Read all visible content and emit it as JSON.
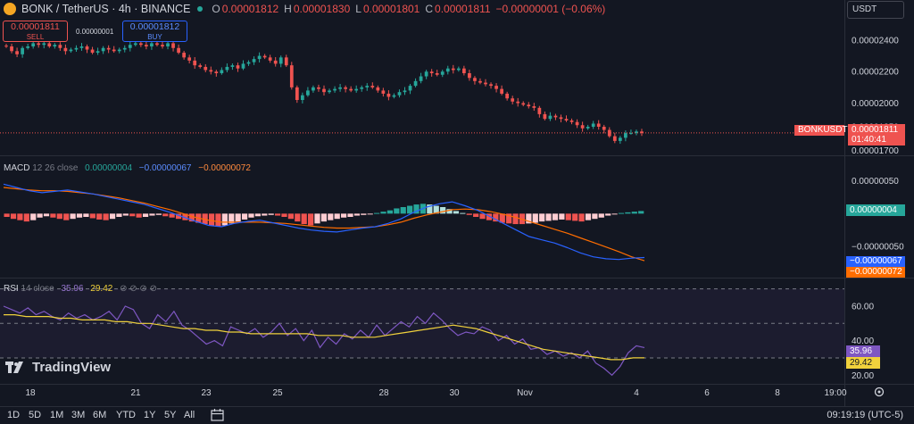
{
  "header": {
    "symbol": "BONK / TetherUS · 4h · BINANCE",
    "ohlc": [
      {
        "key": "O",
        "value": "0.00001812"
      },
      {
        "key": "H",
        "value": "0.00001830"
      },
      {
        "key": "L",
        "value": "0.00001801"
      },
      {
        "key": "C",
        "value": "0.00001811"
      }
    ],
    "change": "−0.00000001 (−0.06%)"
  },
  "trade": {
    "sell_price": "0.00001811",
    "sell_label": "SELL",
    "spread": "0.00000001",
    "buy_price": "0.00001812",
    "buy_label": "BUY"
  },
  "currency_selector": "USDT",
  "price_badge": {
    "symbol": "BONKUSDT",
    "price": "0.00001811",
    "countdown": "01:40:41"
  },
  "macd_legend": {
    "name": "MACD",
    "params": "12 26 close",
    "v1": "0.00000004",
    "v2": "−0.00000067",
    "v3": "−0.00000072"
  },
  "macd_badges": [
    "0.00000004",
    "−0.00000067",
    "−0.00000072"
  ],
  "rsi_legend": {
    "name": "RSI",
    "params": "14 close",
    "v1": "35.96",
    "v2": "29.42",
    "icons": "⊘ ⊘ ⊘ ⊘"
  },
  "rsi_badges": [
    "35.96",
    "29.42"
  ],
  "brand": "TradingView",
  "toolbar": {
    "timeframes": [
      "1D",
      "5D",
      "1M",
      "3M",
      "6M",
      "YTD",
      "1Y",
      "5Y",
      "All"
    ],
    "clock": "09:19:19 (UTC-5)"
  },
  "colors": {
    "up": "#26a69a",
    "down": "#ef5350",
    "macd": "#2962ff",
    "signal": "#ff6d00",
    "rsi": "#7e57c2",
    "rsi_ma": "#f0d13c"
  },
  "chart_data": [
    {
      "type": "candlestick",
      "title": "BONK / TetherUS · 4h · BINANCE",
      "x_ticks": [
        "18",
        "21",
        "23",
        "25",
        "28",
        "30",
        "Nov",
        "4",
        "6",
        "8",
        "19:00"
      ],
      "y_ticks": [
        "0.00002400",
        "0.00002200",
        "0.00002000",
        "0.00001850",
        "0.00001700"
      ],
      "ylim": [
        1.68e-05,
        2.53e-05
      ],
      "last_price": 1.811e-05,
      "close_series": [
        2.36e-05,
        2.33e-05,
        2.31e-05,
        2.35e-05,
        2.36e-05,
        2.38e-05,
        2.37e-05,
        2.38e-05,
        2.36e-05,
        2.37e-05,
        2.35e-05,
        2.33e-05,
        2.34e-05,
        2.35e-05,
        2.36e-05,
        2.34e-05,
        2.32e-05,
        2.33e-05,
        2.35e-05,
        2.34e-05,
        2.33e-05,
        2.34e-05,
        2.35e-05,
        2.37e-05,
        2.38e-05,
        2.37e-05,
        2.36e-05,
        2.38e-05,
        2.37e-05,
        2.36e-05,
        2.38e-05,
        2.35e-05,
        2.32e-05,
        2.29e-05,
        2.27e-05,
        2.24e-05,
        2.23e-05,
        2.21e-05,
        2.2e-05,
        2.19e-05,
        2.21e-05,
        2.23e-05,
        2.24e-05,
        2.22e-05,
        2.25e-05,
        2.26e-05,
        2.28e-05,
        2.3e-05,
        2.29e-05,
        2.27e-05,
        2.25e-05,
        2.29e-05,
        2.24e-05,
        2.1e-05,
        2.02e-05,
        2.05e-05,
        2.08e-05,
        2.1e-05,
        2.09e-05,
        2.07e-05,
        2.08e-05,
        2.09e-05,
        2.1e-05,
        2.09e-05,
        2.08e-05,
        2.09e-05,
        2.1e-05,
        2.11e-05,
        2.1e-05,
        2.08e-05,
        2.06e-05,
        2.04e-05,
        2.05e-05,
        2.07e-05,
        2.08e-05,
        2.11e-05,
        2.14e-05,
        2.17e-05,
        2.2e-05,
        2.19e-05,
        2.18e-05,
        2.2e-05,
        2.22e-05,
        2.21e-05,
        2.22e-05,
        2.19e-05,
        2.16e-05,
        2.14e-05,
        2.13e-05,
        2.12e-05,
        2.11e-05,
        2.09e-05,
        2.06e-05,
        2.03e-05,
        2.01e-05,
        2e-05,
        1.99e-05,
        1.98e-05,
        1.97e-05,
        1.93e-05,
        1.9e-05,
        1.92e-05,
        1.91e-05,
        1.9e-05,
        1.89e-05,
        1.88e-05,
        1.86e-05,
        1.84e-05,
        1.85e-05,
        1.87e-05,
        1.85e-05,
        1.83e-05,
        1.79e-05,
        1.76e-05,
        1.78e-05,
        1.81e-05,
        1.81e-05,
        1.82e-05,
        1.81e-05
      ]
    },
    {
      "type": "bar",
      "title": "MACD",
      "y_ticks": [
        "0.00000050",
        "−0.00000050"
      ],
      "ylim": [
        -9.5e-07,
        8.5e-07
      ],
      "histogram": [
        -0.05,
        -0.08,
        -0.1,
        -0.12,
        -0.1,
        -0.06,
        -0.04,
        -0.06,
        -0.08,
        -0.1,
        -0.08,
        -0.06,
        -0.05,
        -0.07,
        -0.09,
        -0.1,
        -0.08,
        -0.05,
        -0.03,
        -0.04,
        -0.06,
        -0.05,
        -0.03,
        -0.02,
        -0.04,
        -0.06,
        -0.08,
        -0.1,
        -0.12,
        -0.14,
        -0.16,
        -0.18,
        -0.2,
        -0.18,
        -0.15,
        -0.12,
        -0.09,
        -0.06,
        -0.04,
        -0.03,
        -0.02,
        -0.03,
        -0.05,
        -0.08,
        -0.12,
        -0.16,
        -0.18,
        -0.15,
        -0.12,
        -0.1,
        -0.08,
        -0.06,
        -0.05,
        -0.03,
        -0.02,
        -0.01,
        0.01,
        0.03,
        0.05,
        0.08,
        0.1,
        0.12,
        0.14,
        0.15,
        0.14,
        0.12,
        0.1,
        0.07,
        0.04,
        0.01,
        -0.02,
        -0.05,
        -0.08,
        -0.1,
        -0.12,
        -0.14,
        -0.15,
        -0.16,
        -0.16,
        -0.15,
        -0.14,
        -0.12,
        -0.11,
        -0.1,
        -0.09,
        -0.1,
        -0.11,
        -0.12,
        -0.1,
        -0.08,
        -0.06,
        -0.03,
        -0.01,
        0.01,
        0.02,
        0.03,
        0.04
      ],
      "macd_line": [
        0.45,
        0.4,
        0.35,
        0.32,
        0.34,
        0.36,
        0.33,
        0.3,
        0.26,
        0.22,
        0.18,
        0.14,
        0.08,
        0.02,
        -0.05,
        -0.12,
        -0.18,
        -0.2,
        -0.15,
        -0.12,
        -0.1,
        -0.14,
        -0.18,
        -0.22,
        -0.25,
        -0.27,
        -0.28,
        -0.25,
        -0.22,
        -0.2,
        -0.15,
        -0.08,
        0.02,
        0.1,
        0.15,
        0.18,
        0.12,
        0.05,
        -0.05,
        -0.15,
        -0.25,
        -0.35,
        -0.4,
        -0.45,
        -0.52,
        -0.6,
        -0.66,
        -0.69,
        -0.7,
        -0.68,
        -0.67
      ],
      "signal_line": [
        0.4,
        0.38,
        0.36,
        0.35,
        0.35,
        0.34,
        0.32,
        0.3,
        0.27,
        0.24,
        0.2,
        0.16,
        0.11,
        0.06,
        0.0,
        -0.06,
        -0.1,
        -0.13,
        -0.13,
        -0.13,
        -0.13,
        -0.14,
        -0.15,
        -0.17,
        -0.19,
        -0.21,
        -0.22,
        -0.22,
        -0.21,
        -0.2,
        -0.17,
        -0.13,
        -0.07,
        -0.02,
        0.02,
        0.06,
        0.07,
        0.06,
        0.03,
        -0.01,
        -0.06,
        -0.12,
        -0.18,
        -0.24,
        -0.3,
        -0.37,
        -0.44,
        -0.51,
        -0.58,
        -0.66,
        -0.72
      ]
    },
    {
      "type": "line",
      "title": "RSI",
      "y_ticks": [
        "60.00",
        "40.00",
        "20.00"
      ],
      "ylim": [
        16,
        75
      ],
      "bands": [
        70,
        50,
        30
      ],
      "rsi": [
        60,
        58,
        56,
        59,
        55,
        57,
        54,
        52,
        56,
        53,
        55,
        52,
        54,
        57,
        52,
        60,
        58,
        50,
        47,
        55,
        51,
        57,
        49,
        46,
        42,
        38,
        40,
        37,
        48,
        46,
        44,
        47,
        42,
        45,
        50,
        43,
        47,
        40,
        46,
        36,
        42,
        38,
        44,
        41,
        46,
        42,
        49,
        43,
        47,
        51,
        48,
        54,
        50,
        56,
        52,
        47,
        43,
        45,
        44,
        48,
        46,
        40,
        43,
        38,
        41,
        35,
        36,
        32,
        34,
        31,
        33,
        30,
        34,
        27,
        24,
        20,
        25,
        33,
        37,
        36
      ],
      "rsi_ma": [
        55,
        55,
        54,
        54,
        54,
        53,
        53,
        52,
        52,
        52,
        51,
        51,
        50,
        50,
        49,
        48,
        47,
        47,
        46,
        46,
        45,
        45,
        44,
        44,
        44,
        44,
        44,
        44,
        43,
        43,
        43,
        42,
        42,
        42,
        43,
        44,
        45,
        46,
        47,
        48,
        49,
        48,
        47,
        45,
        43,
        41,
        39,
        37,
        35,
        34,
        33,
        32,
        31,
        30,
        29,
        29,
        30,
        30
      ]
    }
  ]
}
